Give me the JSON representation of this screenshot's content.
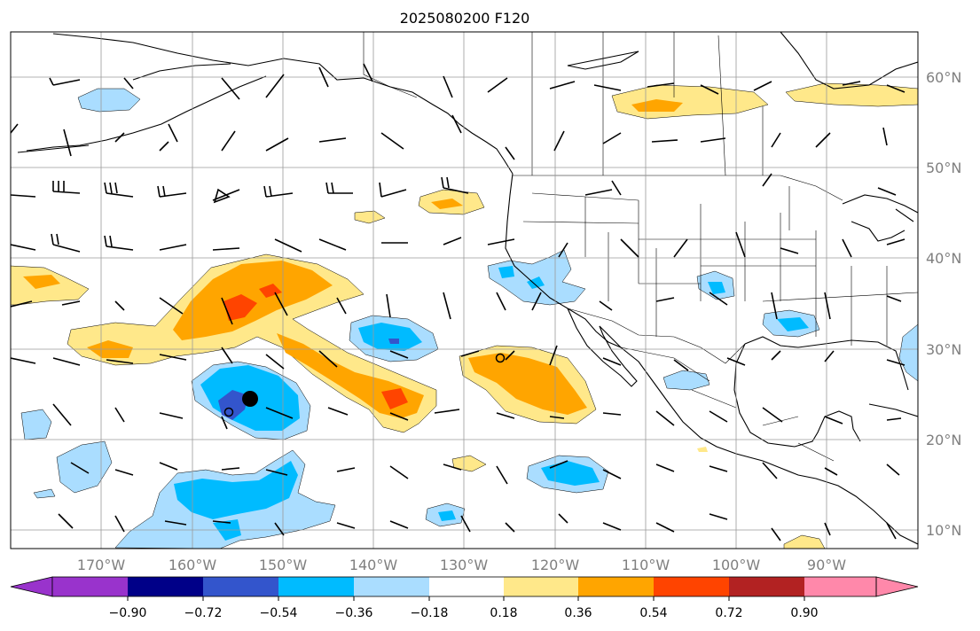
{
  "title": "2025080200 F120",
  "lon_labels": [
    "170°W",
    "160°W",
    "150°W",
    "140°W",
    "130°W",
    "120°W",
    "110°W",
    "100°W",
    "90°W"
  ],
  "lat_labels": [
    "60°N",
    "50°N",
    "40°N",
    "30°N",
    "20°N",
    "10°N"
  ],
  "colorbar": {
    "colors": [
      "#9933cc",
      "#000088",
      "#3355cc",
      "#00bbff",
      "#aaddff",
      "#ffffff",
      "#ffe88a",
      "#ffa500",
      "#ff4400",
      "#b22222",
      "#ff88aa"
    ],
    "tick_labels": [
      "−0.90",
      "−0.72",
      "−0.54",
      "−0.36",
      "−0.18",
      "0.18",
      "0.36",
      "0.54",
      "0.72",
      "0.90"
    ]
  },
  "fill_colors": {
    "light_blue": "#aaddff",
    "blue": "#00bbff",
    "dark_blue": "#3355cc",
    "yellow": "#ffe88a",
    "orange": "#ffa500",
    "red": "#ff4400"
  },
  "markers": [
    {
      "name": "large-dot",
      "lon": -153.5,
      "lat": 24.3,
      "style": "filled"
    },
    {
      "name": "small-circle-1",
      "lon": -155.8,
      "lat": 22.8,
      "style": "open"
    },
    {
      "name": "small-circle-2",
      "lon": -126.5,
      "lat": 28.8,
      "style": "open"
    }
  ]
}
